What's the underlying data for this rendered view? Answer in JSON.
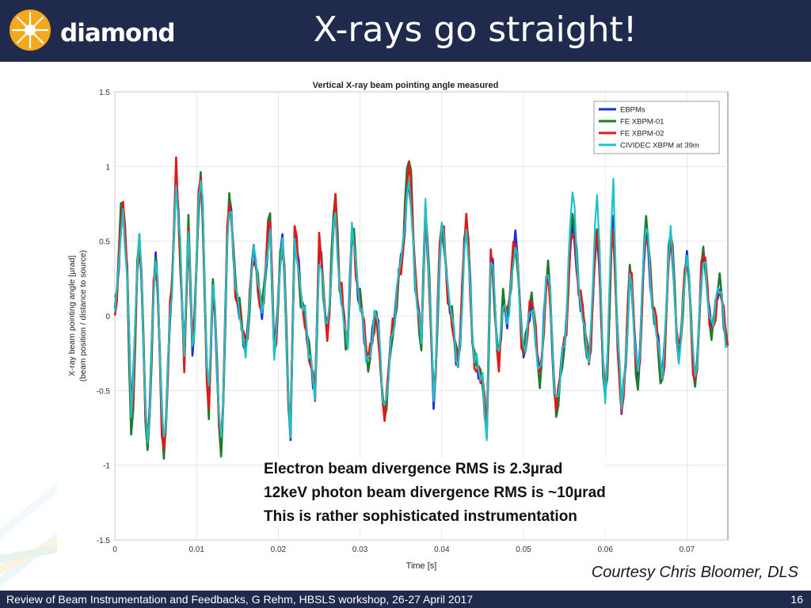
{
  "header": {
    "logo_text": "diamond",
    "title": "X-rays go straight!"
  },
  "colors": {
    "header_bg": "#1f2a4d",
    "series_ebpm": "#1f2ad8",
    "series_fe01": "#1b7d2a",
    "series_fe02": "#e0191a",
    "series_cividec": "#1cc3c6"
  },
  "chart_data": {
    "type": "line",
    "title": "Vertical X-ray beam pointing angle measured",
    "xlabel": "Time [s]",
    "ylabel": "X-ray beam pointing angle [µrad]",
    "ylabel2": "(beam position / distance to source)",
    "xlim": [
      0,
      0.075
    ],
    "ylim": [
      -1.5,
      1.5
    ],
    "x_ticks": [
      0,
      0.01,
      0.02,
      0.03,
      0.04,
      0.05,
      0.06,
      0.07
    ],
    "x_tick_labels": [
      "0",
      "0.01",
      "0.02",
      "0.03",
      "0.04",
      "0.05",
      "0.06",
      "0.07"
    ],
    "y_ticks": [
      -1.5,
      -1,
      -0.5,
      0,
      0.5,
      1,
      1.5
    ],
    "y_tick_labels": [
      "-1.5",
      "-1",
      "-0.5",
      "0",
      "0.5",
      "1",
      "1.5"
    ],
    "grid": true,
    "legend_position": "top-right",
    "x": [
      0,
      0.001,
      0.0015,
      0.002,
      0.003,
      0.004,
      0.005,
      0.006,
      0.007,
      0.0075,
      0.008,
      0.0085,
      0.009,
      0.0095,
      0.0105,
      0.0115,
      0.012,
      0.013,
      0.014,
      0.015,
      0.016,
      0.017,
      0.018,
      0.019,
      0.0195,
      0.0205,
      0.0215,
      0.022,
      0.023,
      0.024,
      0.0245,
      0.025,
      0.026,
      0.027,
      0.0275,
      0.0285,
      0.029,
      0.03,
      0.031,
      0.032,
      0.033,
      0.034,
      0.035,
      0.036,
      0.037,
      0.0375,
      0.038,
      0.0385,
      0.039,
      0.04,
      0.041,
      0.042,
      0.043,
      0.044,
      0.045,
      0.0455,
      0.046,
      0.047,
      0.0475,
      0.048,
      0.049,
      0.05,
      0.051,
      0.052,
      0.053,
      0.054,
      0.055,
      0.056,
      0.057,
      0.058,
      0.059,
      0.06,
      0.061,
      0.0615,
      0.062,
      0.0625,
      0.063,
      0.064,
      0.065,
      0.066,
      0.067,
      0.068,
      0.069,
      0.07,
      0.071,
      0.072,
      0.073,
      0.074,
      0.075
    ],
    "series": [
      {
        "name": "EBPMs",
        "values": [
          0.05,
          0.75,
          0.3,
          -0.65,
          0.5,
          -0.8,
          0.35,
          -0.85,
          0.2,
          0.95,
          0.4,
          -0.3,
          0.6,
          -0.2,
          0.9,
          -0.6,
          0.2,
          -0.85,
          0.75,
          0.1,
          -0.2,
          0.4,
          0.05,
          0.6,
          -0.25,
          0.5,
          -0.75,
          0.55,
          0.05,
          -0.3,
          -0.5,
          0.45,
          -0.1,
          0.75,
          0.2,
          -0.2,
          0.55,
          0.1,
          -0.3,
          0.0,
          -0.6,
          -0.1,
          0.35,
          0.9,
          0.1,
          -0.2,
          0.7,
          0.2,
          -0.55,
          0.55,
          0.05,
          -0.3,
          0.6,
          -0.3,
          -0.4,
          -0.8,
          0.4,
          -0.3,
          0.1,
          0.0,
          0.5,
          -0.25,
          0.1,
          -0.4,
          0.3,
          -0.6,
          -0.2,
          0.6,
          0.1,
          -0.3,
          0.55,
          -0.5,
          0.6,
          -0.15,
          -0.6,
          -0.3,
          0.3,
          -0.4,
          0.55,
          0.0,
          -0.4,
          0.55,
          -0.25,
          0.35,
          -0.4,
          0.4,
          -0.1,
          0.2,
          -0.2
        ]
      },
      {
        "name": "FE XBPM-01",
        "values": [
          0.05,
          0.8,
          0.3,
          -0.8,
          0.5,
          -0.9,
          0.4,
          -0.95,
          0.2,
          1.0,
          0.4,
          -0.3,
          0.6,
          -0.2,
          0.95,
          -0.65,
          0.2,
          -0.9,
          0.8,
          0.1,
          -0.2,
          0.4,
          0.05,
          0.7,
          -0.25,
          0.5,
          -0.8,
          0.55,
          0.05,
          -0.3,
          -0.6,
          0.5,
          -0.1,
          0.8,
          0.2,
          -0.2,
          0.6,
          0.1,
          -0.3,
          0.0,
          -0.7,
          -0.1,
          0.35,
          1.05,
          0.1,
          -0.2,
          0.75,
          0.2,
          -0.55,
          0.6,
          0.05,
          -0.3,
          0.65,
          -0.3,
          -0.45,
          -0.8,
          0.4,
          -0.3,
          0.1,
          0.0,
          0.5,
          -0.25,
          0.1,
          -0.4,
          0.3,
          -0.65,
          -0.2,
          0.65,
          0.1,
          -0.3,
          0.6,
          -0.55,
          0.6,
          -0.15,
          -0.7,
          -0.3,
          0.35,
          -0.45,
          0.6,
          0.0,
          -0.45,
          0.55,
          -0.25,
          0.4,
          -0.5,
          0.45,
          -0.1,
          0.2,
          -0.2
        ]
      },
      {
        "name": "FE XBPM-02",
        "values": [
          0.05,
          0.75,
          0.3,
          -0.7,
          0.5,
          -0.85,
          0.35,
          -0.9,
          0.2,
          0.98,
          0.4,
          -0.3,
          0.6,
          -0.2,
          0.92,
          -0.6,
          0.2,
          -0.88,
          0.78,
          0.1,
          -0.2,
          0.4,
          0.05,
          0.65,
          -0.25,
          0.5,
          -0.78,
          0.55,
          0.05,
          -0.3,
          -0.55,
          0.48,
          -0.1,
          0.78,
          0.2,
          -0.2,
          0.58,
          0.1,
          -0.3,
          0.0,
          -0.65,
          -0.1,
          0.35,
          1.0,
          0.1,
          -0.2,
          0.72,
          0.2,
          -0.55,
          0.62,
          0.05,
          -0.3,
          0.62,
          -0.3,
          -0.42,
          -0.8,
          0.4,
          -0.3,
          0.1,
          0.0,
          0.5,
          -0.25,
          0.1,
          -0.4,
          0.3,
          -0.62,
          -0.2,
          0.62,
          0.1,
          -0.3,
          0.58,
          -0.52,
          0.6,
          -0.15,
          -0.65,
          -0.3,
          0.32,
          -0.42,
          0.58,
          0.0,
          -0.42,
          0.55,
          -0.25,
          0.38,
          -0.45,
          0.42,
          -0.1,
          0.2,
          -0.2
        ]
      },
      {
        "name": "CIVIDEC XBPM at 39m",
        "values": [
          0.05,
          0.7,
          0.3,
          -0.65,
          0.5,
          -0.8,
          0.35,
          -0.85,
          0.2,
          0.9,
          0.45,
          -0.3,
          0.6,
          -0.2,
          0.95,
          -0.55,
          0.2,
          -0.8,
          0.7,
          0.1,
          -0.2,
          0.4,
          0.05,
          0.6,
          -0.25,
          0.45,
          -0.75,
          0.5,
          0.05,
          -0.3,
          -0.5,
          0.4,
          -0.1,
          0.7,
          0.2,
          -0.2,
          0.55,
          0.1,
          -0.3,
          0.0,
          -0.6,
          -0.1,
          0.35,
          0.9,
          0.1,
          -0.2,
          0.7,
          0.2,
          -0.5,
          0.6,
          0.05,
          -0.3,
          0.55,
          -0.3,
          -0.4,
          -0.8,
          0.4,
          -0.3,
          0.1,
          0.0,
          0.45,
          -0.25,
          0.1,
          -0.4,
          0.3,
          -0.55,
          -0.2,
          0.8,
          0.1,
          -0.3,
          0.75,
          -0.5,
          0.85,
          -0.15,
          -0.6,
          -0.3,
          0.3,
          -0.4,
          0.6,
          0.0,
          -0.4,
          0.55,
          -0.25,
          0.35,
          -0.4,
          0.4,
          -0.1,
          0.2,
          -0.2
        ]
      }
    ]
  },
  "annotation": {
    "line1": "Electron beam divergence RMS is 2.3µrad",
    "line2": "12keV photon beam divergence RMS is ~10µrad",
    "line3": "This is rather sophisticated instrumentation"
  },
  "courtesy": "Courtesy Chris Bloomer, DLS",
  "footer": {
    "text": "Review of Beam Instrumentation and Feedbacks, G Rehm, HBSLS workshop, 26-27 April 2017",
    "page": "16"
  }
}
